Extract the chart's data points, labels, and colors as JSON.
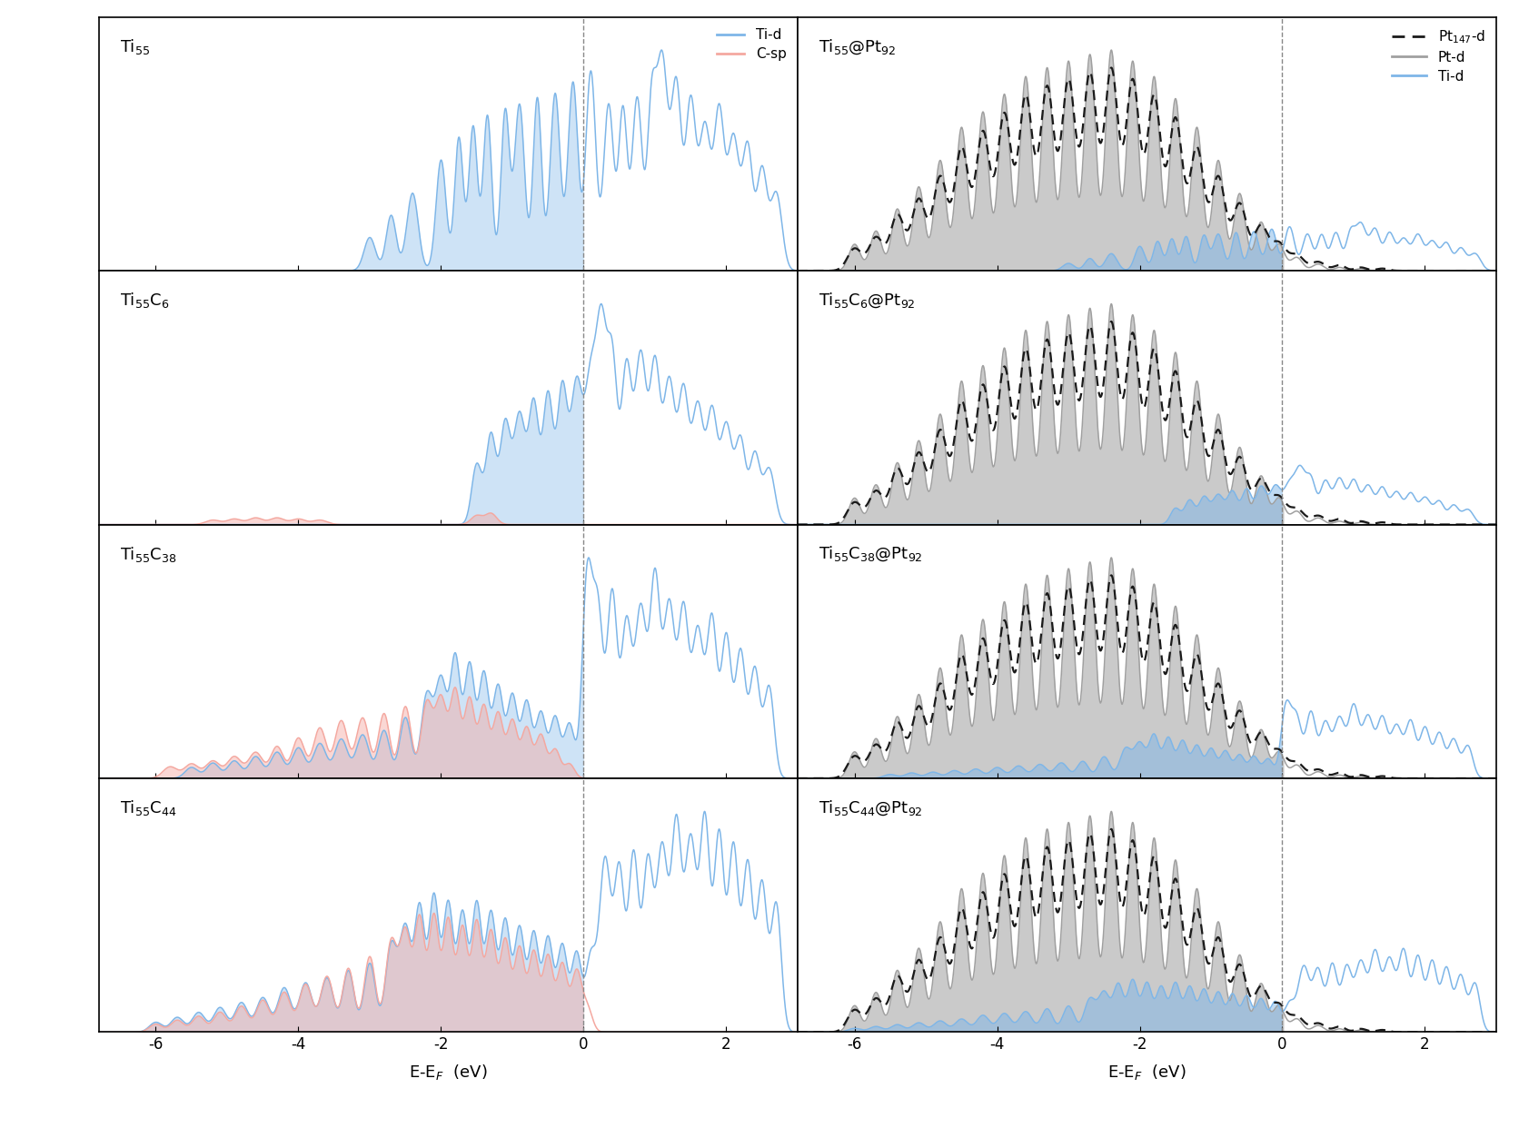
{
  "xlim": [
    -6.8,
    3.0
  ],
  "vline_x": 0.0,
  "left_titles": [
    "Ti$_{55}$",
    "Ti$_{55}$C$_6$",
    "Ti$_{55}$C$_{38}$",
    "Ti$_{55}$C$_{44}$"
  ],
  "right_titles": [
    "Ti$_{55}$@Pt$_{92}$",
    "Ti$_{55}$C$_6$@Pt$_{92}$",
    "Ti$_{55}$C$_{38}$@Pt$_{92}$",
    "Ti$_{55}$C$_{44}$@Pt$_{92}$"
  ],
  "xlabel": "E-E$_F$  (eV)",
  "ti_d_color": "#7EB6E8",
  "c_sp_color": "#F4A8A0",
  "pt_d_color": "#A0A0A0",
  "pt147_d_color": "#1a1a1a",
  "background_color": "#ffffff"
}
